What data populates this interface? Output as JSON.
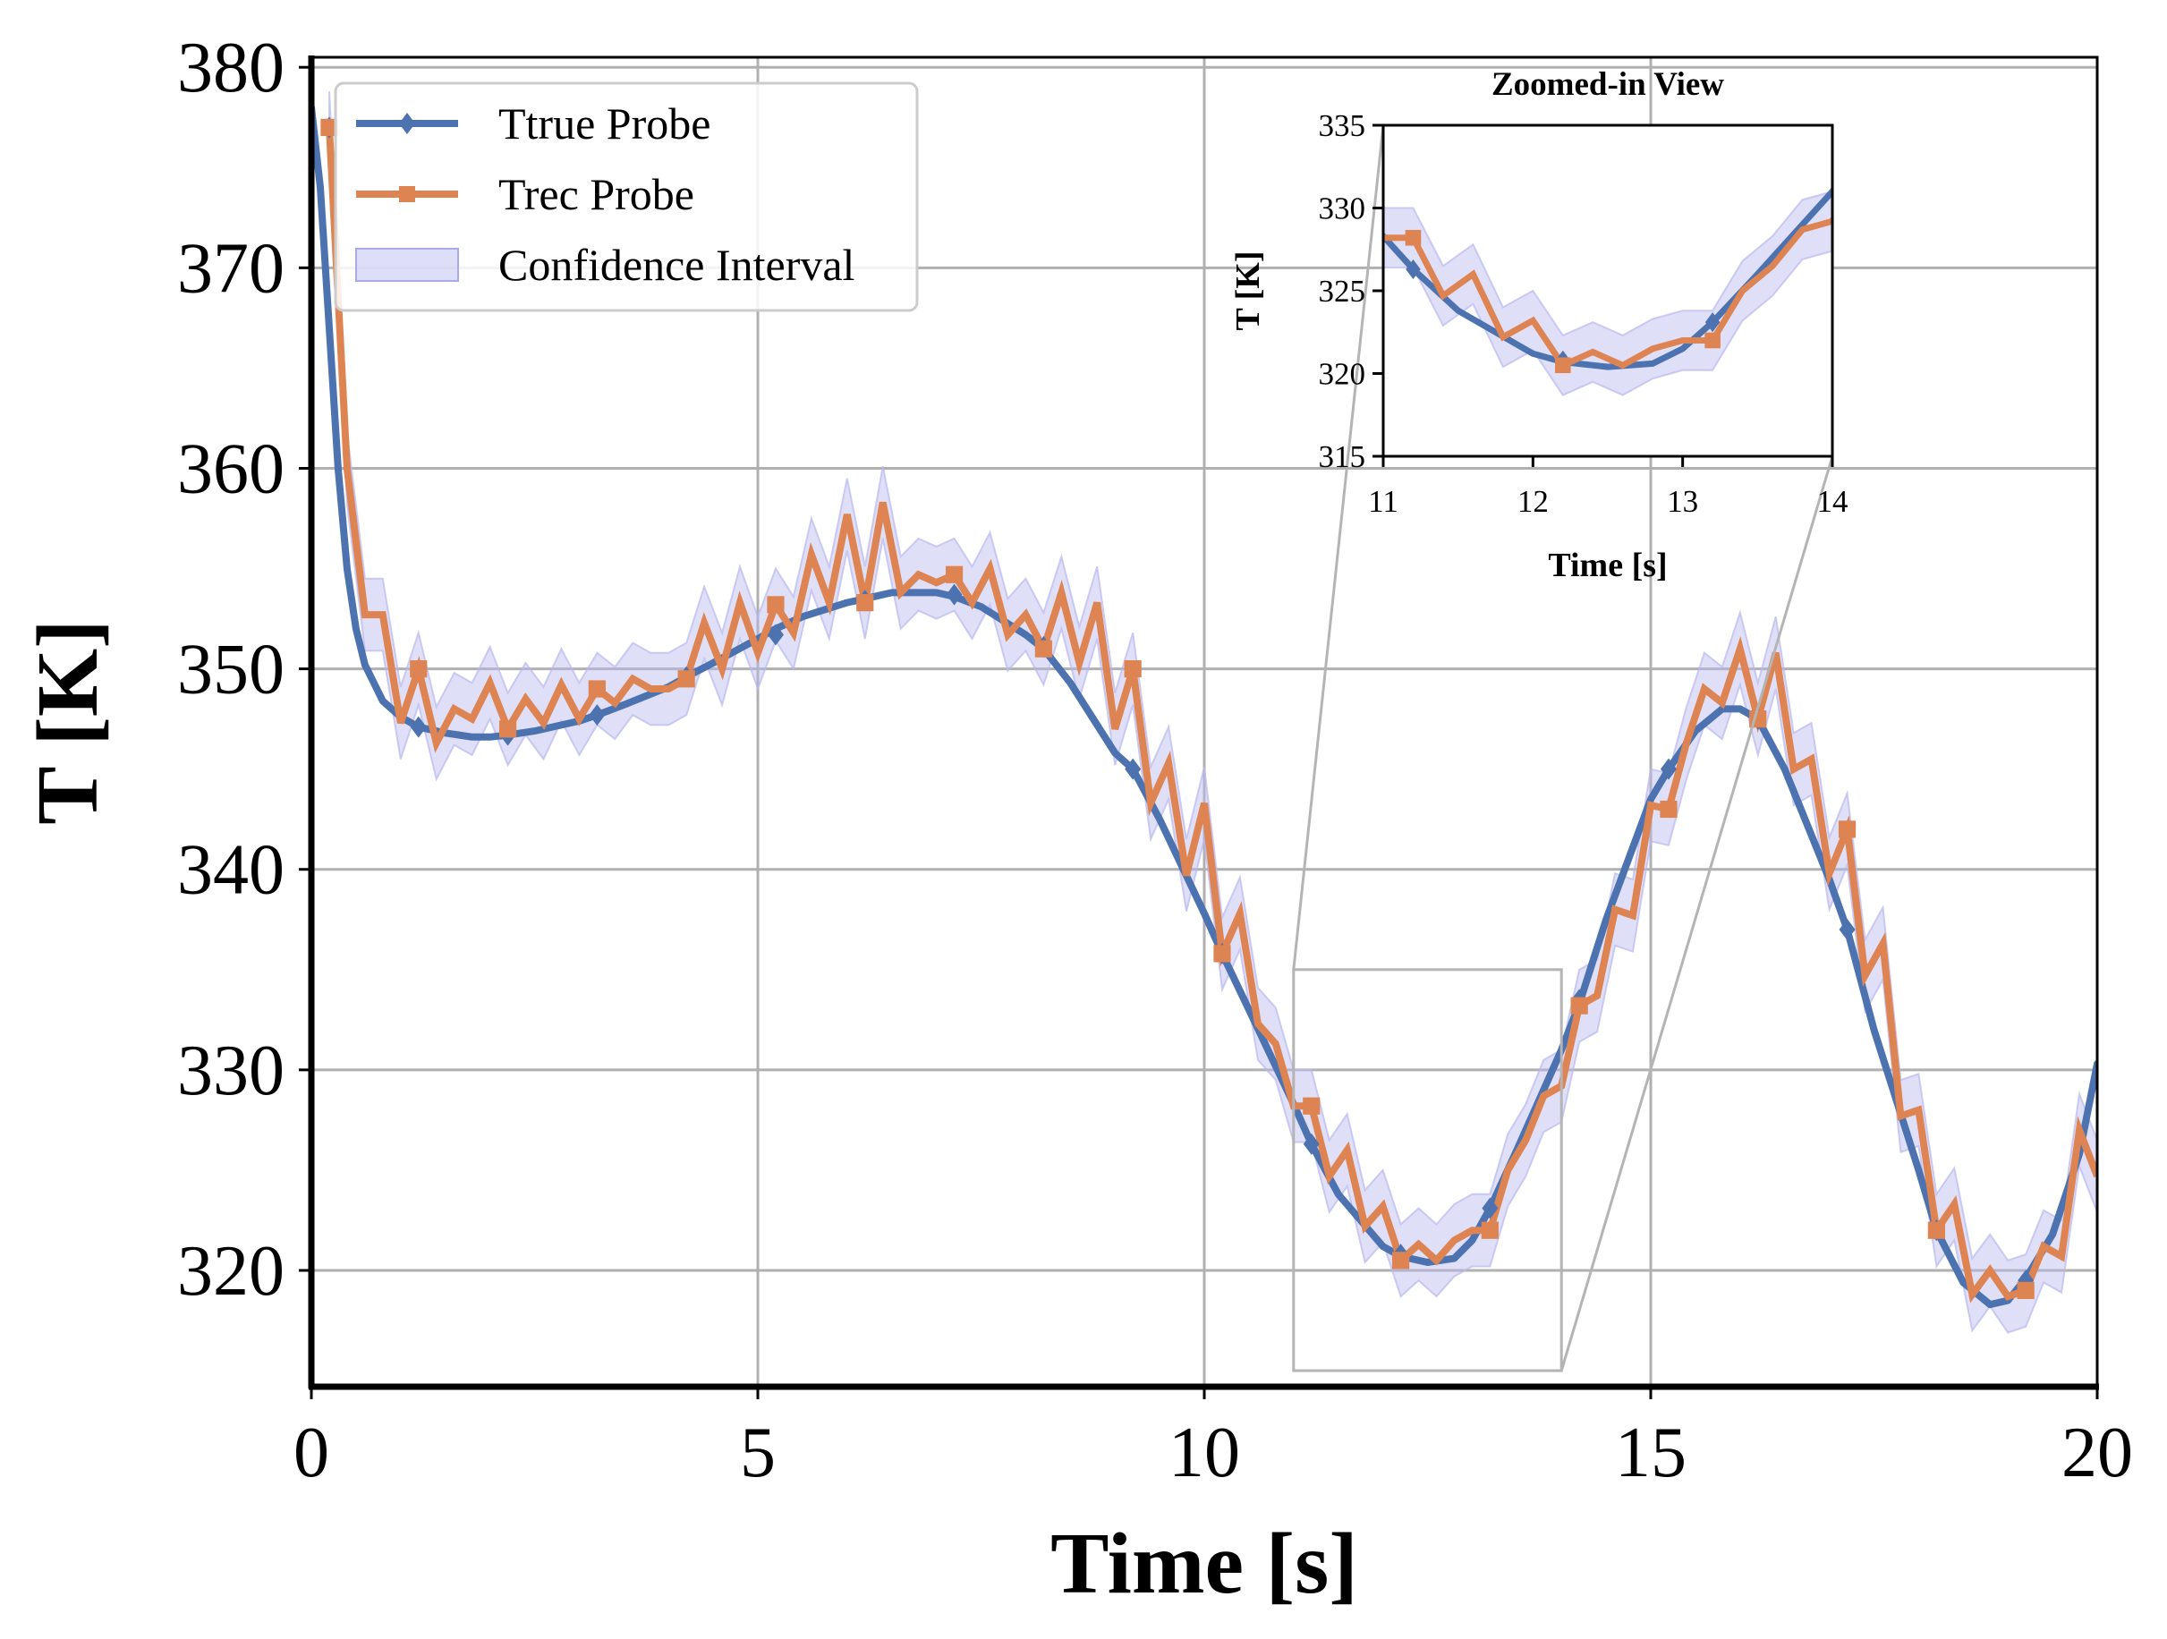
{
  "chart_data": {
    "type": "line",
    "xlabel": "Time [s]",
    "ylabel": "T [K]",
    "xlim": [
      0,
      20
    ],
    "ylim": [
      314.2,
      380.5
    ],
    "xticks": [
      0,
      5,
      10,
      15,
      20
    ],
    "yticks": [
      320,
      330,
      340,
      350,
      360,
      370,
      380
    ],
    "grid": true,
    "legend_position": "top-left",
    "colors": {
      "true": "#4c72b0",
      "rec": "#dd8452",
      "ci": "#b8b8f0"
    },
    "series": [
      {
        "name": "Ttrue Probe",
        "marker": "diamond",
        "x": [
          0,
          0.1,
          0.2,
          0.3,
          0.4,
          0.5,
          0.6,
          0.8,
          1.0,
          1.2,
          1.5,
          1.8,
          2.0,
          2.2,
          2.5,
          3.0,
          3.2,
          3.5,
          4.0,
          4.2,
          4.5,
          5.0,
          5.2,
          5.5,
          6.0,
          6.2,
          6.5,
          7.0,
          7.2,
          7.5,
          8.0,
          8.2,
          8.5,
          9.0,
          9.2,
          9.5,
          10.0,
          10.2,
          10.5,
          11.0,
          11.2,
          11.5,
          12.0,
          12.2,
          12.5,
          12.8,
          13.0,
          13.2,
          13.5,
          14.0,
          14.2,
          14.5,
          15.0,
          15.2,
          15.5,
          15.8,
          16.0,
          16.2,
          16.5,
          17.0,
          17.2,
          17.5,
          18.0,
          18.2,
          18.5,
          18.8,
          19.0,
          19.2,
          19.5,
          19.8,
          20.0
        ],
        "y": [
          378,
          374,
          367,
          360,
          355,
          352,
          350.2,
          348.4,
          347.6,
          347.1,
          346.8,
          346.6,
          346.6,
          346.7,
          346.9,
          347.4,
          347.7,
          348.2,
          349.1,
          349.6,
          350.3,
          351.5,
          352.0,
          352.6,
          353.3,
          353.5,
          353.8,
          353.8,
          353.6,
          353.1,
          351.7,
          351.0,
          349.3,
          345.8,
          345.0,
          342.5,
          337.8,
          335.8,
          333.0,
          328.3,
          326.3,
          323.8,
          321.2,
          320.7,
          320.4,
          320.6,
          321.5,
          323.1,
          326.0,
          331.0,
          333.3,
          337.5,
          343.5,
          345.0,
          346.9,
          348.0,
          348.0,
          347.5,
          345.0,
          339.5,
          337.0,
          332.0,
          325.0,
          322.0,
          319.4,
          318.3,
          318.5,
          319.6,
          321.8,
          325.8,
          330.3
        ],
        "markers_x": [
          0.2,
          1.2,
          2.2,
          3.2,
          4.2,
          5.2,
          6.2,
          7.2,
          8.2,
          9.2,
          10.2,
          11.2,
          12.2,
          13.2,
          14.2,
          15.2,
          16.2,
          17.2,
          18.2,
          19.2
        ],
        "markers_y": [
          377,
          347.1,
          346.7,
          347.7,
          349.6,
          351.7,
          353.4,
          353.7,
          351.1,
          345.0,
          335.8,
          326.3,
          320.8,
          323.1,
          333.5,
          345.0,
          347.5,
          337.0,
          322.0,
          319.5
        ]
      },
      {
        "name": "Trec Probe",
        "marker": "square",
        "x": [
          0.2,
          0.4,
          0.6,
          0.8,
          1.0,
          1.2,
          1.4,
          1.6,
          1.8,
          2.0,
          2.2,
          2.4,
          2.6,
          2.8,
          3.0,
          3.2,
          3.4,
          3.6,
          3.8,
          4.0,
          4.2,
          4.4,
          4.6,
          4.8,
          5.0,
          5.2,
          5.4,
          5.6,
          5.8,
          6.0,
          6.2,
          6.4,
          6.6,
          6.8,
          7.0,
          7.2,
          7.4,
          7.6,
          7.8,
          8.0,
          8.2,
          8.4,
          8.6,
          8.8,
          9.0,
          9.2,
          9.4,
          9.6,
          9.8,
          10.0,
          10.2,
          10.4,
          10.6,
          10.8,
          11.0,
          11.2,
          11.4,
          11.6,
          11.8,
          12.0,
          12.2,
          12.4,
          12.6,
          12.8,
          13.0,
          13.2,
          13.4,
          13.6,
          13.8,
          14.0,
          14.2,
          14.4,
          14.6,
          14.8,
          15.0,
          15.2,
          15.4,
          15.6,
          15.8,
          16.0,
          16.2,
          16.4,
          16.6,
          16.8,
          17.0,
          17.2,
          17.4,
          17.6,
          17.8,
          18.0,
          18.2,
          18.4,
          18.6,
          18.8,
          19.0,
          19.2,
          19.4,
          19.6,
          19.8,
          20.0
        ],
        "y": [
          377,
          360,
          352.7,
          352.7,
          347.3,
          350.0,
          346.3,
          348.0,
          347.5,
          349.3,
          347.0,
          348.5,
          347.3,
          349.2,
          347.5,
          349.0,
          348.3,
          349.5,
          349.0,
          349.0,
          349.5,
          352.3,
          350.0,
          353.3,
          350.8,
          353.2,
          351.8,
          355.7,
          353.3,
          357.7,
          353.3,
          358.3,
          353.8,
          354.7,
          354.3,
          354.7,
          353.3,
          355.0,
          351.7,
          352.7,
          351.0,
          353.8,
          350.3,
          353.3,
          347.0,
          350.0,
          343.3,
          345.3,
          339.7,
          343.3,
          335.8,
          337.8,
          332.3,
          331.3,
          328.2,
          328.2,
          324.7,
          326.0,
          322.2,
          323.2,
          320.5,
          321.3,
          320.5,
          321.5,
          322.0,
          322.0,
          325.0,
          326.5,
          328.7,
          329.2,
          333.2,
          333.7,
          338.0,
          337.7,
          343.2,
          343.0,
          346.3,
          349.0,
          348.3,
          351.0,
          347.5,
          350.8,
          345.0,
          345.5,
          339.8,
          342.0,
          334.7,
          336.3,
          327.7,
          328.0,
          322.0,
          323.3,
          318.8,
          320.0,
          318.7,
          319.0,
          321.2,
          320.7,
          327.0,
          324.7
        ],
        "markers_x": [
          0.2,
          1.2,
          2.2,
          3.2,
          4.2,
          5.2,
          6.2,
          7.2,
          8.2,
          9.2,
          10.2,
          11.2,
          12.2,
          13.2,
          14.2,
          15.2,
          16.2,
          17.2,
          18.2,
          19.2
        ],
        "markers_y": [
          377,
          350.0,
          347.0,
          349.0,
          349.5,
          353.2,
          353.3,
          354.7,
          351.0,
          350.0,
          335.8,
          328.2,
          320.5,
          322.0,
          333.2,
          343.0,
          347.5,
          342.0,
          322.0,
          319.0
        ]
      },
      {
        "name": "Confidence Interval",
        "type": "band",
        "half_width": 1.8
      }
    ],
    "inset": {
      "title": "Zoomed-in View",
      "xlabel": "Time [s]",
      "ylabel": "T [K]",
      "xlim": [
        11,
        14
      ],
      "ylim": [
        315,
        335
      ],
      "xticks": [
        11,
        12,
        13,
        14
      ],
      "yticks": [
        315,
        320,
        325,
        330,
        335
      ],
      "zoom_box": {
        "x": [
          11,
          14
        ],
        "y": [
          315,
          335
        ]
      }
    }
  },
  "legend": [
    {
      "label": "Ttrue Probe"
    },
    {
      "label": "Trec Probe"
    },
    {
      "label": "Confidence Interval"
    }
  ],
  "main_axes": {
    "xtick_labels": [
      "0",
      "5",
      "10",
      "15",
      "20"
    ],
    "ytick_labels": [
      "320",
      "330",
      "340",
      "350",
      "360",
      "370",
      "380"
    ]
  },
  "inset_axes": {
    "xtick_labels": [
      "11",
      "12",
      "13",
      "14"
    ],
    "ytick_labels": [
      "315",
      "320",
      "325",
      "330",
      "335"
    ]
  }
}
